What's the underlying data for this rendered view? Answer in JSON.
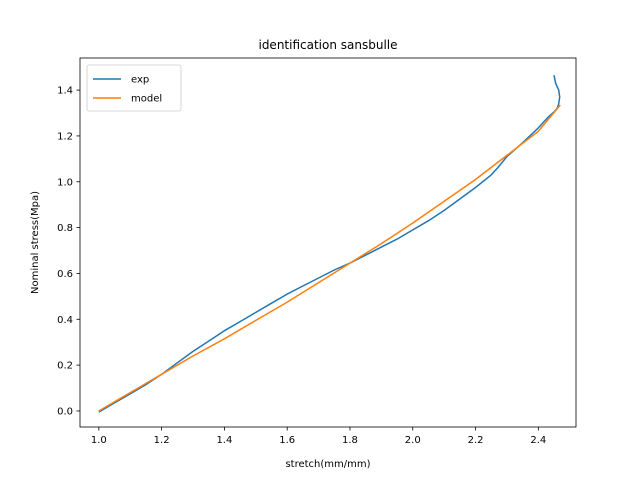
{
  "chart_data": {
    "type": "line",
    "title": "identification sansbulle",
    "xlabel": "stretch(mm/mm)",
    "ylabel": "Nominal stress(Mpa)",
    "xlim": [
      0.94,
      2.52
    ],
    "ylim": [
      -0.07,
      1.54
    ],
    "xticks": [
      1.0,
      1.2,
      1.4,
      1.6,
      1.8,
      2.0,
      2.2,
      2.4
    ],
    "xtick_labels": [
      "1.0",
      "1.2",
      "1.4",
      "1.6",
      "1.8",
      "2.0",
      "2.2",
      "2.4"
    ],
    "yticks": [
      0.0,
      0.2,
      0.4,
      0.6,
      0.8,
      1.0,
      1.2,
      1.4
    ],
    "ytick_labels": [
      "0.0",
      "0.2",
      "0.4",
      "0.6",
      "0.8",
      "1.0",
      "1.2",
      "1.4"
    ],
    "grid": false,
    "legend": "top-left",
    "series": [
      {
        "name": "exp",
        "color": "#1f77b4",
        "x": [
          1.0,
          1.05,
          1.1,
          1.15,
          1.2,
          1.25,
          1.3,
          1.35,
          1.4,
          1.45,
          1.5,
          1.55,
          1.6,
          1.65,
          1.7,
          1.75,
          1.8,
          1.85,
          1.9,
          1.95,
          2.0,
          2.05,
          2.1,
          2.15,
          2.2,
          2.25,
          2.27,
          2.3,
          2.35,
          2.4,
          2.43,
          2.45,
          2.46,
          2.465,
          2.468,
          2.465,
          2.455,
          2.45
        ],
        "y": [
          -0.005,
          0.035,
          0.075,
          0.115,
          0.16,
          0.21,
          0.26,
          0.305,
          0.35,
          0.39,
          0.43,
          0.47,
          0.51,
          0.545,
          0.58,
          0.615,
          0.645,
          0.68,
          0.715,
          0.75,
          0.79,
          0.83,
          0.875,
          0.925,
          0.975,
          1.03,
          1.06,
          1.11,
          1.17,
          1.235,
          1.28,
          1.305,
          1.32,
          1.34,
          1.37,
          1.4,
          1.43,
          1.465
        ]
      },
      {
        "name": "model",
        "color": "#ff7f0e",
        "x": [
          1.0,
          1.1,
          1.2,
          1.3,
          1.4,
          1.5,
          1.6,
          1.7,
          1.8,
          1.9,
          2.0,
          2.1,
          2.2,
          2.3,
          2.4,
          2.47
        ],
        "y": [
          0.0,
          0.08,
          0.16,
          0.24,
          0.315,
          0.395,
          0.475,
          0.56,
          0.645,
          0.73,
          0.82,
          0.915,
          1.01,
          1.115,
          1.22,
          1.335
        ]
      }
    ]
  }
}
